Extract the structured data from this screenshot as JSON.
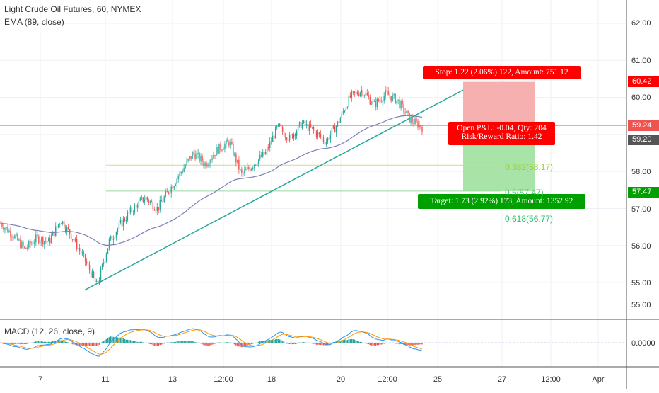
{
  "chart_title": "Light Crude Oil Futures, 60, NYMEX",
  "ema_legend": "EMA (89, close)",
  "macd_legend": "MACD (12, 26, close, 9)",
  "price_axis": [
    "62.00",
    "61.00",
    "60.00",
    "59.00",
    "58.00",
    "57.00",
    "56.00",
    "55.00"
  ],
  "macd_axis": [
    "0.0000"
  ],
  "price_tags": {
    "stop": "60.42",
    "current": "59.24",
    "entry": "59.20",
    "target": "57.47"
  },
  "time_axis": [
    "7",
    "11",
    "13",
    "12:00",
    "18",
    "20",
    "12:00",
    "25",
    "27",
    "12:00",
    "Apr"
  ],
  "stop_box": "Stop: 1.22 (2.06%) 122, Amount: 751.12",
  "pnl_box": {
    "line1": "Open P&L: -0.04, Qty: 204",
    "line2": "Risk/Reward Ratio: 1.42"
  },
  "target_box": "Target: 1.73 (2.92%) 173, Amount: 1352.92",
  "fib_levels": [
    "0.382(58.17)",
    "0.5(57.47)",
    "0.618(56.77)"
  ],
  "colors": {
    "up": "#26a69a",
    "down": "#ef5350",
    "stop_red": "#ff0000",
    "target_green": "#00a000",
    "ema": "#7b7fb8",
    "macd": "#2196f3",
    "signal": "#ff9800"
  },
  "chart_data": {
    "type": "candlestick",
    "symbol": "Light Crude Oil Futures",
    "interval": "60",
    "exchange": "NYMEX",
    "price_range": [
      54.4,
      62.4
    ],
    "last_price": 59.24,
    "stop": 60.42,
    "entry": 59.2,
    "target": 57.47,
    "fib": [
      {
        "ratio": 0.382,
        "price": 58.17
      },
      {
        "ratio": 0.5,
        "price": 57.47
      },
      {
        "ratio": 0.618,
        "price": 56.77
      }
    ],
    "close_path": [
      56.6,
      56.3,
      55.9,
      56.2,
      56.1,
      56.7,
      56.2,
      55.6,
      54.9,
      56.1,
      56.6,
      57.0,
      57.3,
      57.0,
      57.5,
      58.0,
      58.5,
      58.2,
      58.6,
      58.8,
      57.9,
      58.2,
      58.5,
      59.2,
      58.9,
      59.3,
      59.1,
      58.8,
      59.3,
      60.0,
      60.2,
      59.8,
      60.1,
      59.9,
      59.4,
      59.2
    ]
  }
}
